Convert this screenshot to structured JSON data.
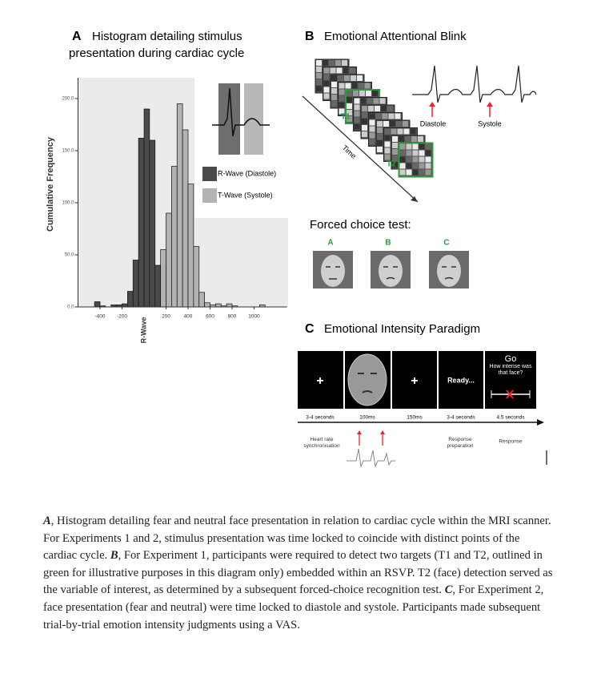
{
  "panel_a": {
    "letter": "A",
    "title_lines": [
      "Histogram detailing stimulus",
      "presentation during cardiac cycle"
    ],
    "chart_data": {
      "type": "histogram",
      "ylabel": "Cumulative Frequency",
      "xlabel": "R-Wave",
      "bins": [
        -600,
        -550,
        -500,
        -450,
        -400,
        -350,
        -300,
        -250,
        -200,
        -150,
        -100,
        -50,
        0,
        50,
        100,
        150,
        200,
        250,
        300,
        350,
        400,
        450,
        500,
        550,
        600,
        650,
        700,
        750,
        800,
        850,
        900,
        950,
        1000,
        1050,
        1100,
        1150,
        1200
      ],
      "series": [
        {
          "name": "R-Wave (Diastole)",
          "color": "#4a4a4a",
          "values": [
            0,
            0,
            0,
            5,
            1,
            0,
            2,
            2,
            3,
            15,
            45,
            162,
            190,
            160,
            40,
            0,
            0,
            0,
            0,
            0,
            0,
            0,
            0,
            0,
            0,
            0,
            0,
            0,
            0,
            0,
            0,
            0,
            0,
            0,
            0,
            0
          ]
        },
        {
          "name": "T-Wave (Systole)",
          "color": "#b3b3b3",
          "values": [
            0,
            0,
            0,
            0,
            0,
            0,
            0,
            0,
            0,
            0,
            0,
            0,
            0,
            0,
            0,
            55,
            90,
            135,
            195,
            170,
            118,
            58,
            14,
            4,
            2,
            3,
            1,
            3,
            1,
            0,
            0,
            0,
            0,
            2,
            0,
            0
          ]
        }
      ],
      "xlim": [
        -600,
        1300
      ],
      "ylim": [
        0,
        220
      ],
      "xticks": [
        -400,
        -200,
        200,
        400,
        600,
        800,
        1000
      ],
      "yticks": [
        {
          "value": 0,
          "label": "0.0"
        },
        {
          "value": 50,
          "label": "50.0"
        },
        {
          "value": 100,
          "label": "100.0"
        },
        {
          "value": 150,
          "label": "150.0"
        },
        {
          "value": 200,
          "label": "200.0"
        }
      ]
    }
  },
  "panel_b": {
    "letter": "B",
    "title": "Emotional Attentional Blink",
    "t1": "T1",
    "t2": "T2",
    "time": "Time",
    "diastole": "Diastole",
    "systole": "Systole",
    "forced_choice": "Forced choice test:",
    "options": [
      "A",
      "B",
      "C"
    ]
  },
  "panel_c": {
    "letter": "C",
    "title": "Emotional Intensity Paradigm",
    "plus": "+",
    "ready": "Ready...",
    "go": "Go",
    "question": "How intense was that face?",
    "durations": [
      "3-4 seconds",
      "100ms",
      "150ms",
      "3-4 seconds",
      "4.5 seconds"
    ],
    "heart_rate": "Heart rate synchronisation",
    "response_preparation": "Response preparation",
    "response": "Response"
  },
  "caption": [
    {
      "label": "A",
      "text": ", Histogram detailing fear and neutral face presentation in relation to cardiac cycle within the MRI scanner. For Experiments 1 and 2, stimulus presentation was time locked to coincide with distinct points of the cardiac cycle. "
    },
    {
      "label": "B",
      "text": ", For Experiment 1, participants were required to detect two targets (T1 and T2, outlined in green for illustrative purposes in this diagram only) embedded within an RSVP. T2 (face) detection served as the variable of interest, as determined by a subsequent forced-choice recognition test. "
    },
    {
      "label": "C",
      "text": ", For Experiment 2, face presentation (fear and neutral) were time locked to diastole and systole. Participants made subsequent trial-by-trial emotion intensity judgments using a VAS."
    }
  ]
}
